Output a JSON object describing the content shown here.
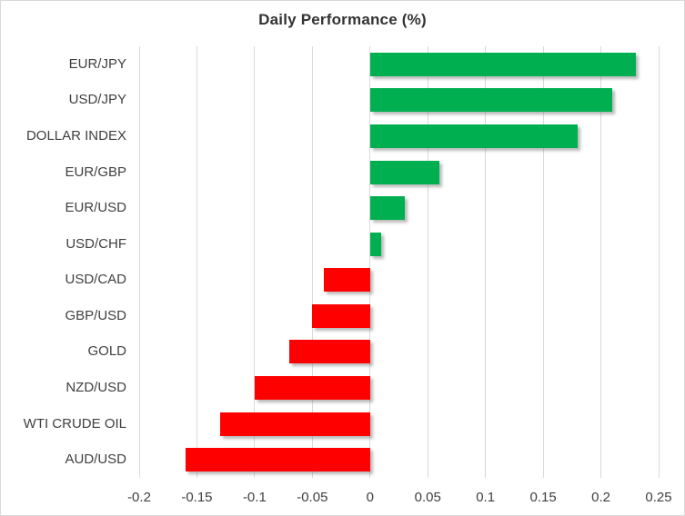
{
  "chart_data": {
    "type": "bar",
    "orientation": "horizontal",
    "title": "Daily Performance (%)",
    "categories": [
      "EUR/JPY",
      "USD/JPY",
      "DOLLAR INDEX",
      "EUR/GBP",
      "EUR/USD",
      "USD/CHF",
      "USD/CAD",
      "GBP/USD",
      "GOLD",
      "NZD/USD",
      "WTI CRUDE OIL",
      "AUD/USD"
    ],
    "values": [
      0.23,
      0.21,
      0.18,
      0.06,
      0.03,
      0.01,
      -0.04,
      -0.05,
      -0.07,
      -0.1,
      -0.13,
      -0.16
    ],
    "xlabel": "",
    "ylabel": "",
    "xlim": [
      -0.2,
      0.25
    ],
    "xticks": [
      -0.2,
      -0.15,
      -0.1,
      -0.05,
      0,
      0.05,
      0.1,
      0.15,
      0.2,
      0.25
    ],
    "xtick_labels": [
      "-0.2",
      "-0.15",
      "-0.1",
      "-0.05",
      "0",
      "0.05",
      "0.1",
      "0.15",
      "0.2",
      "0.25"
    ],
    "grid": true,
    "legend": false,
    "colors": {
      "positive_bar": "#00B050",
      "negative_bar": "#FF0000",
      "gridline": "#D9D9D9",
      "frame_border": "#D9D9D9",
      "title_text": "#333333",
      "label_text": "#404040",
      "tick_text": "#404040",
      "background": "#FFFFFF"
    }
  }
}
